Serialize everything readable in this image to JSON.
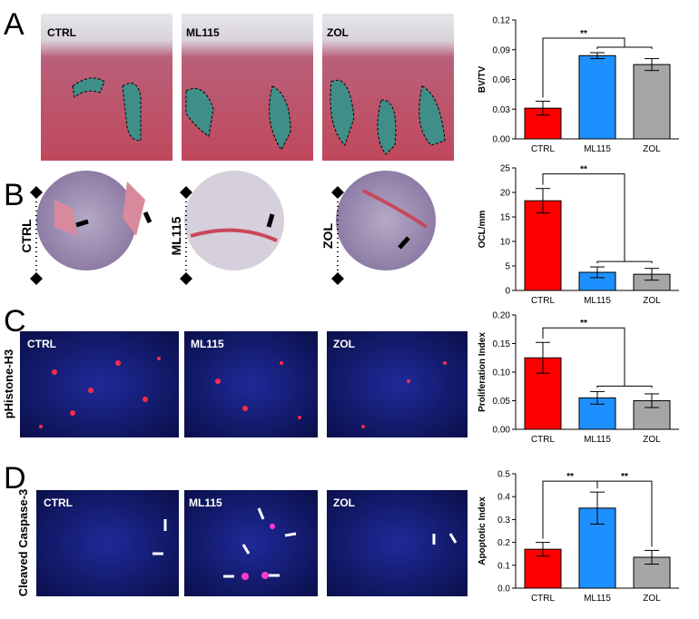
{
  "panels": [
    {
      "letter": "A",
      "images": [
        "CTRL",
        "ML115",
        "ZOL"
      ]
    },
    {
      "letter": "B",
      "images": [
        "CTRL",
        "ML115",
        "ZOL"
      ]
    },
    {
      "letter": "C",
      "row_label": "pHistone-H3",
      "images": [
        "CTRL",
        "ML115",
        "ZOL"
      ]
    },
    {
      "letter": "D",
      "row_label": "Cleaved Caspase-3",
      "images": [
        "CTRL",
        "ML115",
        "ZOL"
      ]
    }
  ],
  "chart_data": [
    {
      "type": "bar",
      "y_label": "BV/TV",
      "categories": [
        "CTRL",
        "ML115",
        "ZOL"
      ],
      "values": [
        0.031,
        0.084,
        0.075
      ],
      "errors": [
        0.007,
        0.003,
        0.006
      ],
      "colors": [
        "#ff0000",
        "#1e8fff",
        "#a6a6a6"
      ],
      "ylim": [
        0,
        0.12
      ],
      "yticks": [
        {
          "value": 0,
          "label": "0.00"
        },
        0.03,
        0.06,
        0.09,
        0.12
      ],
      "comparisons": [
        {
          "groups": [
            [
              0
            ],
            [
              1,
              2
            ]
          ],
          "label": "**"
        }
      ]
    },
    {
      "type": "bar",
      "y_label": "OCL/mm",
      "categories": [
        "CTRL",
        "ML115",
        "ZOL"
      ],
      "values": [
        18.3,
        3.7,
        3.3
      ],
      "errors": [
        2.5,
        1.1,
        1.2
      ],
      "colors": [
        "#ff0000",
        "#1e8fff",
        "#a6a6a6"
      ],
      "ylim": [
        0,
        25
      ],
      "yticks": [
        0,
        5,
        10,
        15,
        20,
        25
      ],
      "comparisons": [
        {
          "groups": [
            [
              0
            ],
            [
              1,
              2
            ]
          ],
          "label": "**"
        }
      ]
    },
    {
      "type": "bar",
      "y_label": "Proliferation Index",
      "categories": [
        "CTRL",
        "ML115",
        "ZOL"
      ],
      "values": [
        0.125,
        0.055,
        0.05
      ],
      "errors": [
        0.027,
        0.011,
        0.012
      ],
      "colors": [
        "#ff0000",
        "#1e8fff",
        "#a6a6a6"
      ],
      "ylim": [
        0,
        0.2
      ],
      "yticks": [
        {
          "value": 0,
          "label": "0.00"
        },
        0.05,
        {
          "value": 0.1,
          "label": "0.10"
        },
        0.15,
        {
          "value": 0.2,
          "label": "0.20"
        }
      ],
      "comparisons": [
        {
          "groups": [
            [
              0
            ],
            [
              1,
              2
            ]
          ],
          "label": "**"
        }
      ]
    },
    {
      "type": "bar",
      "y_label": "Apoptotic Index",
      "categories": [
        "CTRL",
        "ML115",
        "ZOL"
      ],
      "values": [
        0.17,
        0.35,
        0.135
      ],
      "errors": [
        0.03,
        0.07,
        0.03
      ],
      "colors": [
        "#ff0000",
        "#1e8fff",
        "#a6a6a6"
      ],
      "ylim": [
        0,
        0.5
      ],
      "yticks": [
        {
          "value": 0,
          "label": "0.0"
        },
        0.1,
        0.2,
        0.3,
        0.4,
        0.5
      ],
      "comparisons": [
        {
          "groups": [
            [
              0
            ],
            [
              1
            ]
          ],
          "label": "**"
        },
        {
          "groups": [
            [
              1
            ],
            [
              2
            ]
          ],
          "label": "**"
        }
      ]
    }
  ]
}
